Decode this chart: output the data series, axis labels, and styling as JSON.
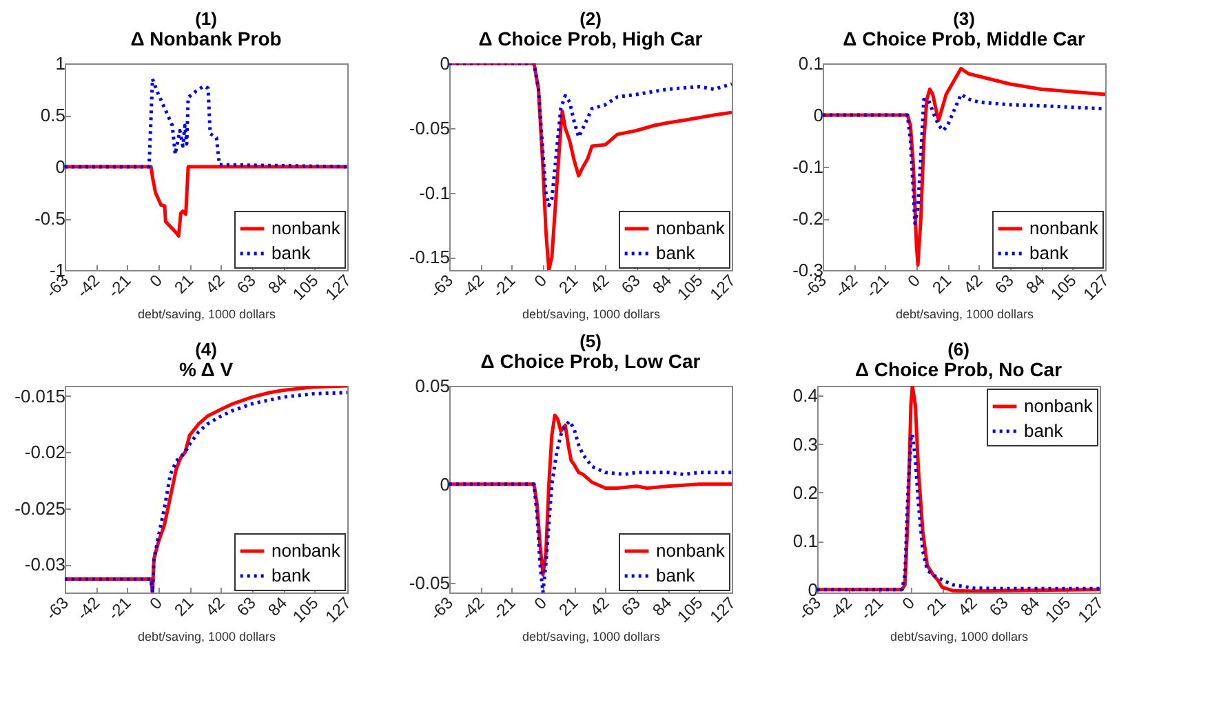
{
  "chart_data": [
    {
      "type": "line",
      "title": "(1)",
      "subtitle": "Δ Nonbank Prob",
      "xlabel": "debt/saving, 1000 dollars",
      "xlim": [
        -63,
        127
      ],
      "xticks": [
        -63,
        -42,
        -21,
        0,
        21,
        42,
        63,
        84,
        105,
        127
      ],
      "ylim": [
        -1,
        1
      ],
      "yticks": [
        -1,
        -0.5,
        0,
        0.5,
        1
      ],
      "legend": "bottom right",
      "series": [
        {
          "name": "nonbank",
          "color": "#ff0000",
          "line_style": "solid",
          "x": [
            -63,
            -5,
            -4,
            -2,
            1.7,
            4.2,
            4.8,
            12,
            13.6,
            15,
            16.4,
            18.4,
            20,
            127
          ],
          "values": [
            0,
            0,
            -0.1,
            -0.25,
            -0.37,
            -0.38,
            -0.53,
            -0.64,
            -0.67,
            -0.45,
            -0.43,
            -0.46,
            0,
            0
          ]
        },
        {
          "name": "bank",
          "color": "#0000ff",
          "line_style": "dotted",
          "x": [
            -63,
            -6.3,
            -4,
            -0.6,
            9.3,
            11.3,
            14.4,
            16.4,
            17.8,
            19,
            20,
            26,
            30.6,
            33.4,
            34.8,
            39,
            41,
            127
          ],
          "values": [
            0,
            0,
            0.85,
            0.72,
            0.4,
            0.12,
            0.35,
            0.2,
            0.4,
            0.22,
            0.67,
            0.74,
            0.78,
            0.76,
            0.32,
            0.28,
            0.02,
            0
          ]
        }
      ]
    },
    {
      "type": "line",
      "title": "(2)",
      "subtitle": "Δ Choice Prob, High Car",
      "xlabel": "debt/saving, 1000 dollars",
      "xlim": [
        -63,
        127
      ],
      "xticks": [
        -63,
        -42,
        -21,
        0,
        21,
        42,
        63,
        84,
        105,
        127
      ],
      "ylim": [
        -0.16,
        0
      ],
      "yticks": [
        -0.15,
        -0.1,
        -0.05,
        0
      ],
      "legend": "bottom right",
      "series": [
        {
          "name": "nonbank",
          "color": "#ff0000",
          "line_style": "solid",
          "x": [
            -63,
            -6,
            -3,
            0,
            2,
            4,
            6,
            9,
            12,
            13,
            15,
            18,
            21,
            24,
            27,
            30,
            33,
            42,
            50,
            63,
            75,
            84,
            95,
            105,
            115,
            127
          ],
          "values": [
            0,
            0,
            -0.02,
            -0.08,
            -0.13,
            -0.16,
            -0.15,
            -0.1,
            -0.05,
            -0.037,
            -0.05,
            -0.06,
            -0.075,
            -0.087,
            -0.08,
            -0.074,
            -0.064,
            -0.063,
            -0.055,
            -0.052,
            -0.048,
            -0.046,
            -0.044,
            -0.042,
            -0.04,
            -0.038
          ]
        },
        {
          "name": "bank",
          "color": "#0000ff",
          "line_style": "dotted",
          "x": [
            -63,
            -6,
            -3,
            0,
            2,
            4,
            6,
            9,
            12,
            15,
            18,
            21,
            24,
            27,
            33,
            42,
            50,
            63,
            84,
            105,
            115,
            127
          ],
          "values": [
            0,
            0,
            -0.02,
            -0.07,
            -0.1,
            -0.11,
            -0.105,
            -0.07,
            -0.035,
            -0.025,
            -0.03,
            -0.045,
            -0.057,
            -0.05,
            -0.035,
            -0.032,
            -0.026,
            -0.024,
            -0.02,
            -0.018,
            -0.02,
            -0.016
          ]
        }
      ]
    },
    {
      "type": "line",
      "title": "(3)",
      "subtitle": "Δ Choice Prob, Middle Car",
      "xlabel": "debt/saving, 1000 dollars",
      "xlim": [
        -63,
        127
      ],
      "xticks": [
        -63,
        -42,
        -21,
        0,
        21,
        42,
        63,
        84,
        105,
        127
      ],
      "ylim": [
        -0.3,
        0.1
      ],
      "yticks": [
        -0.3,
        -0.2,
        -0.1,
        0,
        0.1
      ],
      "legend": "bottom right",
      "series": [
        {
          "name": "nonbank",
          "color": "#ff0000",
          "line_style": "solid",
          "x": [
            -63,
            -6,
            -4,
            -2,
            0,
            1,
            3,
            5,
            7,
            9,
            11,
            14,
            15,
            17,
            20,
            24,
            28,
            30,
            35,
            42,
            63,
            84,
            105,
            127
          ],
          "values": [
            0,
            0,
            -0.02,
            -0.1,
            -0.25,
            -0.29,
            -0.2,
            -0.05,
            0.03,
            0.05,
            0.04,
            0,
            -0.01,
            0.01,
            0.04,
            0.06,
            0.08,
            0.09,
            0.08,
            0.075,
            0.06,
            0.05,
            0.045,
            0.04
          ]
        },
        {
          "name": "bank",
          "color": "#0000ff",
          "line_style": "dotted",
          "x": [
            -63,
            -6,
            -4,
            -2,
            -1,
            1,
            3,
            5,
            8,
            12,
            15,
            18,
            21,
            24,
            27,
            30,
            36,
            42,
            63,
            84,
            105,
            127
          ],
          "values": [
            0,
            0,
            -0.05,
            -0.15,
            -0.21,
            -0.18,
            -0.08,
            0.03,
            0.03,
            0,
            -0.02,
            -0.03,
            -0.02,
            0,
            0.02,
            0.04,
            0.03,
            0.025,
            0.02,
            0.018,
            0.015,
            0.012
          ]
        }
      ]
    },
    {
      "type": "line",
      "title": "(4)",
      "subtitle": "% Δ V",
      "xlabel": "debt/saving, 1000 dollars",
      "xlim": [
        -63,
        127
      ],
      "xticks": [
        -63,
        -42,
        -21,
        0,
        21,
        42,
        63,
        84,
        105,
        127
      ],
      "ylim": [
        -0.0325,
        -0.0141
      ],
      "yticks": [
        -0.03,
        -0.025,
        -0.02,
        -0.015
      ],
      "legend": "bottom right",
      "series": [
        {
          "name": "nonbank",
          "color": "#ff0000",
          "line_style": "solid",
          "x": [
            -63,
            -5,
            -4,
            -3,
            0,
            4,
            8,
            12,
            15,
            18,
            21,
            27,
            33,
            42,
            50,
            63,
            75,
            84,
            105,
            127
          ],
          "values": [
            -0.0313,
            -0.0313,
            -0.0325,
            -0.0295,
            -0.028,
            -0.0265,
            -0.024,
            -0.0215,
            -0.0205,
            -0.02,
            -0.0185,
            -0.0175,
            -0.0168,
            -0.0162,
            -0.0157,
            -0.0151,
            -0.0147,
            -0.0145,
            -0.0142,
            -0.0141
          ]
        },
        {
          "name": "bank",
          "color": "#0000ff",
          "line_style": "dotted",
          "x": [
            -63,
            -5,
            -4,
            -3,
            0,
            4,
            8,
            12,
            18,
            21,
            27,
            33,
            42,
            50,
            63,
            84,
            105,
            127
          ],
          "values": [
            -0.0313,
            -0.0313,
            -0.0325,
            -0.0295,
            -0.0275,
            -0.025,
            -0.022,
            -0.0208,
            -0.02,
            -0.0193,
            -0.0182,
            -0.0175,
            -0.0168,
            -0.0163,
            -0.0157,
            -0.0151,
            -0.0148,
            -0.0147
          ]
        }
      ]
    },
    {
      "type": "line",
      "title": "(5)",
      "subtitle": "Δ Choice Prob, Low Car",
      "xlabel": "debt/saving, 1000 dollars",
      "xlim": [
        -63,
        127
      ],
      "xticks": [
        -63,
        -42,
        -21,
        0,
        21,
        42,
        63,
        84,
        105,
        127
      ],
      "ylim": [
        -0.055,
        0.05
      ],
      "yticks": [
        -0.05,
        0,
        0.05
      ],
      "legend": "bottom right",
      "series": [
        {
          "name": "nonbank",
          "color": "#ff0000",
          "line_style": "solid",
          "x": [
            -63,
            -6,
            -4,
            -2,
            0,
            2,
            4,
            6,
            8,
            10,
            12,
            15,
            17,
            19,
            21,
            24,
            27,
            33,
            42,
            50,
            63,
            70,
            84,
            105,
            127
          ],
          "values": [
            0,
            0,
            -0.01,
            -0.03,
            -0.046,
            -0.035,
            0,
            0.025,
            0.035,
            0.033,
            0.027,
            0.03,
            0.02,
            0.012,
            0.01,
            0.006,
            0.005,
            0.001,
            -0.002,
            -0.002,
            -0.001,
            -0.002,
            -0.001,
            0,
            0
          ]
        },
        {
          "name": "bank",
          "color": "#0000ff",
          "line_style": "dotted",
          "x": [
            -63,
            -6,
            -4,
            -2,
            0,
            2,
            4,
            6,
            9,
            12,
            15,
            18,
            21,
            24,
            27,
            33,
            42,
            55,
            63,
            84,
            95,
            105,
            127
          ],
          "values": [
            0,
            0,
            -0.015,
            -0.04,
            -0.055,
            -0.04,
            -0.02,
            0,
            0.015,
            0.025,
            0.03,
            0.032,
            0.028,
            0.02,
            0.015,
            0.009,
            0.006,
            0.005,
            0.006,
            0.006,
            0.005,
            0.006,
            0.006
          ]
        }
      ]
    },
    {
      "type": "line",
      "title": "(6)",
      "subtitle": "Δ Choice Prob, No Car",
      "xlabel": "debt/saving, 1000 dollars",
      "xlim": [
        -63,
        127
      ],
      "xticks": [
        -63,
        -42,
        -21,
        0,
        21,
        42,
        63,
        84,
        105,
        127
      ],
      "ylim": [
        -0.006,
        0.42
      ],
      "yticks": [
        0,
        0.1,
        0.2,
        0.3,
        0.4
      ],
      "legend": "top right",
      "series": [
        {
          "name": "nonbank",
          "color": "#ff0000",
          "line_style": "solid",
          "x": [
            -63,
            -6,
            -4,
            -2,
            0,
            1,
            3,
            5,
            8,
            11,
            15,
            18,
            21,
            28,
            42,
            63,
            127
          ],
          "values": [
            0,
            0,
            0.01,
            0.15,
            0.38,
            0.42,
            0.38,
            0.25,
            0.12,
            0.05,
            0.03,
            0.02,
            0.005,
            -0.002,
            -0.003,
            -0.002,
            0
          ]
        },
        {
          "name": "bank",
          "color": "#0000ff",
          "line_style": "dotted",
          "x": [
            -63,
            -6,
            -4,
            -2,
            0,
            1,
            3,
            5,
            8,
            11,
            15,
            21,
            28,
            42,
            63,
            127
          ],
          "values": [
            0,
            0,
            0.03,
            0.2,
            0.31,
            0.32,
            0.27,
            0.18,
            0.08,
            0.04,
            0.03,
            0.02,
            0.01,
            0.003,
            0.002,
            0.002
          ]
        }
      ]
    }
  ]
}
